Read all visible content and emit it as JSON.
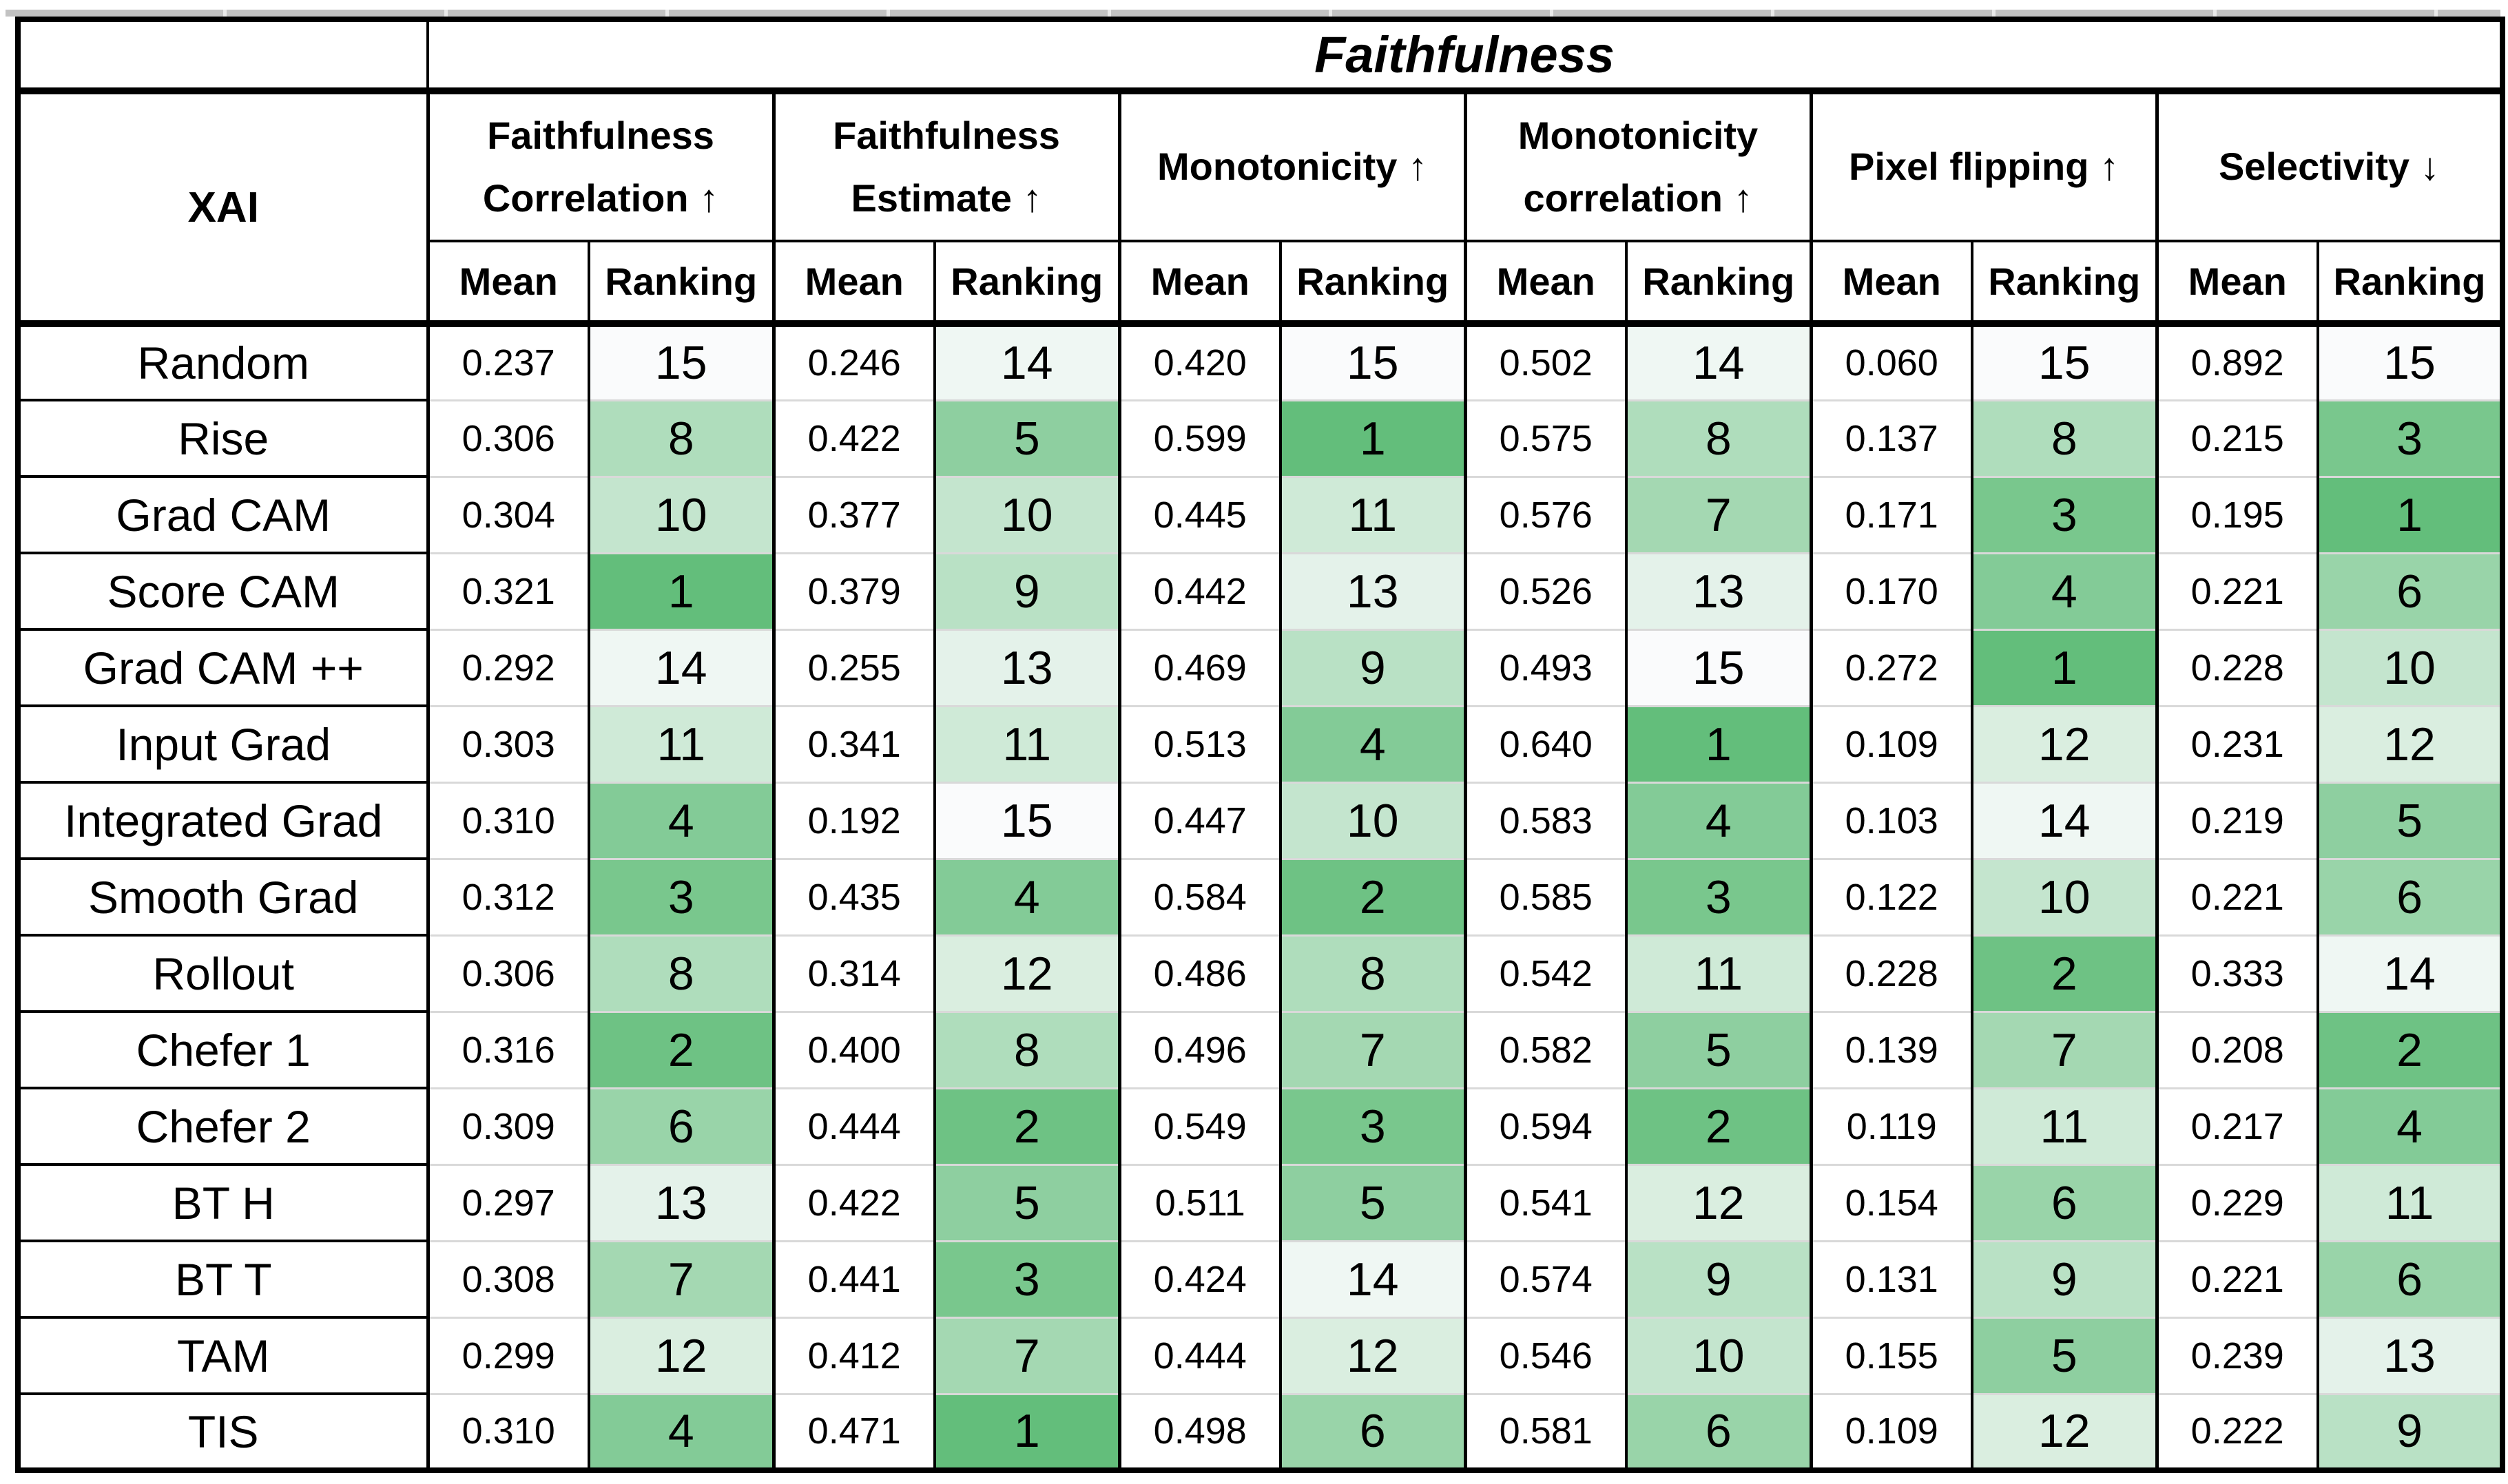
{
  "table": {
    "title": "Faithfulness",
    "corner_label": "XAI",
    "sub_mean": "Mean",
    "sub_ranking": "Ranking",
    "metrics": [
      {
        "name": "faithfulness-correlation",
        "lines": [
          "Faithfulness",
          "Correlation ↑"
        ]
      },
      {
        "name": "faithfulness-estimate",
        "lines": [
          "Faithfulness",
          "Estimate ↑"
        ]
      },
      {
        "name": "monotonicity",
        "lines": [
          "Monotonicity ↑"
        ]
      },
      {
        "name": "monotonicity-correlation",
        "lines": [
          "Monotonicity",
          "correlation ↑"
        ]
      },
      {
        "name": "pixel-flipping",
        "lines": [
          "Pixel flipping ↑"
        ]
      },
      {
        "name": "selectivity",
        "lines": [
          "Selectivity ↓"
        ]
      }
    ],
    "rows": [
      {
        "method": "Random",
        "means": [
          "0.237",
          "0.246",
          "0.420",
          "0.502",
          "0.060",
          "0.892"
        ],
        "ranks": [
          15,
          14,
          15,
          14,
          15,
          15
        ]
      },
      {
        "method": "Rise",
        "means": [
          "0.306",
          "0.422",
          "0.599",
          "0.575",
          "0.137",
          "0.215"
        ],
        "ranks": [
          8,
          5,
          1,
          8,
          8,
          3
        ]
      },
      {
        "method": "Grad CAM",
        "means": [
          "0.304",
          "0.377",
          "0.445",
          "0.576",
          "0.171",
          "0.195"
        ],
        "ranks": [
          10,
          10,
          11,
          7,
          3,
          1
        ]
      },
      {
        "method": "Score CAM",
        "means": [
          "0.321",
          "0.379",
          "0.442",
          "0.526",
          "0.170",
          "0.221"
        ],
        "ranks": [
          1,
          9,
          13,
          13,
          4,
          6
        ]
      },
      {
        "method": "Grad CAM ++",
        "means": [
          "0.292",
          "0.255",
          "0.469",
          "0.493",
          "0.272",
          "0.228"
        ],
        "ranks": [
          14,
          13,
          9,
          15,
          1,
          10
        ]
      },
      {
        "method": "Input Grad",
        "means": [
          "0.303",
          "0.341",
          "0.513",
          "0.640",
          "0.109",
          "0.231"
        ],
        "ranks": [
          11,
          11,
          4,
          1,
          12,
          12
        ]
      },
      {
        "method": "Integrated Grad",
        "means": [
          "0.310",
          "0.192",
          "0.447",
          "0.583",
          "0.103",
          "0.219"
        ],
        "ranks": [
          4,
          15,
          10,
          4,
          14,
          5
        ]
      },
      {
        "method": "Smooth Grad",
        "means": [
          "0.312",
          "0.435",
          "0.584",
          "0.585",
          "0.122",
          "0.221"
        ],
        "ranks": [
          3,
          4,
          2,
          3,
          10,
          6
        ]
      },
      {
        "method": "Rollout",
        "means": [
          "0.306",
          "0.314",
          "0.486",
          "0.542",
          "0.228",
          "0.333"
        ],
        "ranks": [
          8,
          12,
          8,
          11,
          2,
          14
        ]
      },
      {
        "method": "Chefer 1",
        "means": [
          "0.316",
          "0.400",
          "0.496",
          "0.582",
          "0.139",
          "0.208"
        ],
        "ranks": [
          2,
          8,
          7,
          5,
          7,
          2
        ]
      },
      {
        "method": "Chefer 2",
        "means": [
          "0.309",
          "0.444",
          "0.549",
          "0.594",
          "0.119",
          "0.217"
        ],
        "ranks": [
          6,
          2,
          3,
          2,
          11,
          4
        ]
      },
      {
        "method": "BT H",
        "means": [
          "0.297",
          "0.422",
          "0.511",
          "0.541",
          "0.154",
          "0.229"
        ],
        "ranks": [
          13,
          5,
          5,
          12,
          6,
          11
        ]
      },
      {
        "method": "BT T",
        "means": [
          "0.308",
          "0.441",
          "0.424",
          "0.574",
          "0.131",
          "0.221"
        ],
        "ranks": [
          7,
          3,
          14,
          9,
          9,
          6
        ]
      },
      {
        "method": "TAM",
        "means": [
          "0.299",
          "0.412",
          "0.444",
          "0.546",
          "0.155",
          "0.239"
        ],
        "ranks": [
          12,
          7,
          12,
          10,
          5,
          13
        ]
      },
      {
        "method": "TIS",
        "means": [
          "0.310",
          "0.471",
          "0.498",
          "0.581",
          "0.109",
          "0.222"
        ],
        "ranks": [
          4,
          1,
          6,
          6,
          12,
          9
        ]
      }
    ]
  },
  "rank_scale": {
    "best": 1,
    "worst": 15
  },
  "colors": {
    "rank_scale_high": "#63BE7B",
    "rank_scale_low": "#FAFBFC",
    "grid_line": "#D9D9D9",
    "border": "#000000",
    "top_strip": "#C2C2C2"
  }
}
